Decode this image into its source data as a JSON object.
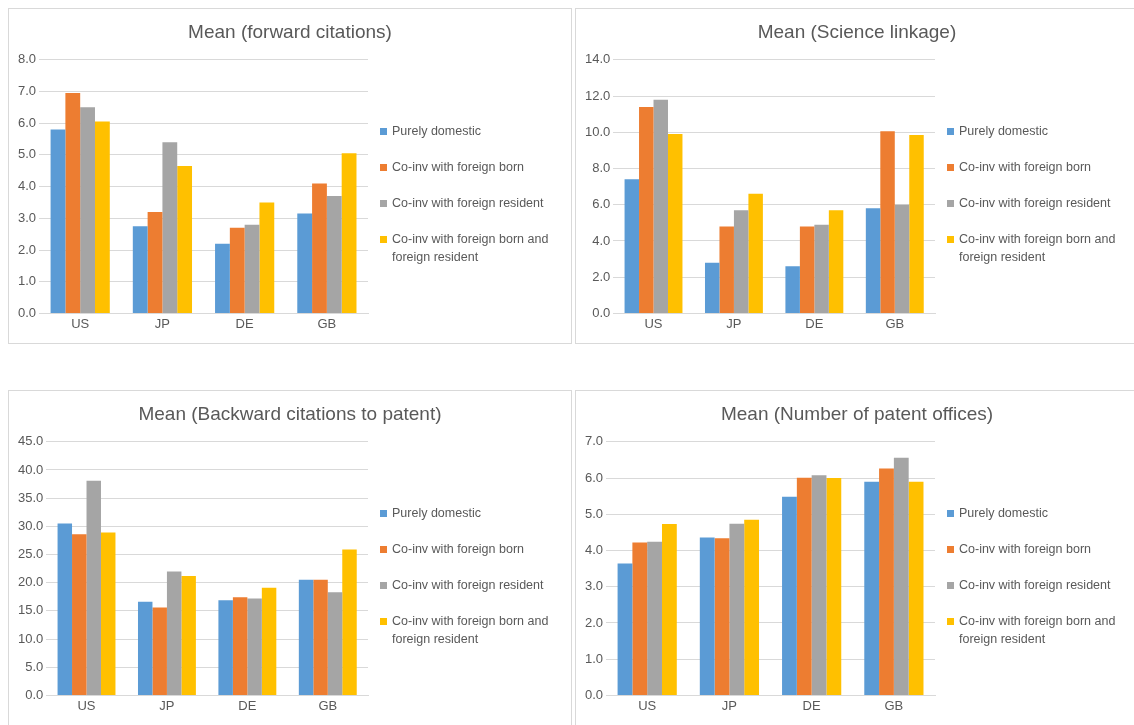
{
  "chart_data": [
    {
      "type": "bar",
      "title": "Mean (forward citations)",
      "categories": [
        "US",
        "JP",
        "DE",
        "GB"
      ],
      "series": [
        {
          "name": "Purely domestic",
          "color": "#5b9bd5",
          "values": [
            5.8,
            2.75,
            2.2,
            3.15
          ]
        },
        {
          "name": "Co-inv with foreign born",
          "color": "#ed7d31",
          "values": [
            6.95,
            3.2,
            2.7,
            4.1
          ]
        },
        {
          "name": "Co-inv with foreign resident",
          "color": "#a5a5a5",
          "values": [
            6.5,
            5.4,
            2.8,
            3.7
          ]
        },
        {
          "name": "Co-inv with foreign born and foreign resident",
          "color": "#ffc000",
          "values": [
            6.05,
            4.65,
            3.5,
            5.05
          ]
        }
      ],
      "ylim": [
        0,
        8
      ],
      "yticks": [
        {
          "value": 0,
          "label": "0.0"
        },
        {
          "value": 1,
          "label": "1.0"
        },
        {
          "value": 2,
          "label": "2.0"
        },
        {
          "value": 3,
          "label": "3.0"
        },
        {
          "value": 4,
          "label": "4.0"
        },
        {
          "value": 5,
          "label": "5.0"
        },
        {
          "value": 6,
          "label": "6.0"
        },
        {
          "value": 7,
          "label": "7.0"
        },
        {
          "value": 8,
          "label": "8.0"
        }
      ],
      "grid": "y",
      "legend": "right"
    },
    {
      "type": "bar",
      "title": "Mean (Science linkage)",
      "categories": [
        "US",
        "JP",
        "DE",
        "GB"
      ],
      "series": [
        {
          "name": "Purely domestic",
          "color": "#5b9bd5",
          "values": [
            7.4,
            2.8,
            2.6,
            5.8
          ]
        },
        {
          "name": "Co-inv with foreign born",
          "color": "#ed7d31",
          "values": [
            11.4,
            4.8,
            4.8,
            10.05
          ]
        },
        {
          "name": "Co-inv with foreign resident",
          "color": "#a5a5a5",
          "values": [
            11.8,
            5.7,
            4.9,
            6.0
          ]
        },
        {
          "name": "Co-inv with foreign born and foreign resident",
          "color": "#ffc000",
          "values": [
            9.9,
            6.6,
            5.7,
            9.85
          ]
        }
      ],
      "ylim": [
        0,
        14
      ],
      "yticks": [
        {
          "value": 0,
          "label": "0.0"
        },
        {
          "value": 2,
          "label": "2.0"
        },
        {
          "value": 4,
          "label": "4.0"
        },
        {
          "value": 6,
          "label": "6.0"
        },
        {
          "value": 8,
          "label": "8.0"
        },
        {
          "value": 10,
          "label": "10.0"
        },
        {
          "value": 12,
          "label": "12.0"
        },
        {
          "value": 14,
          "label": "14.0"
        }
      ],
      "grid": "y",
      "legend": "right"
    },
    {
      "type": "bar",
      "title": "Mean (Backward citations to patent)",
      "categories": [
        "US",
        "JP",
        "DE",
        "GB"
      ],
      "series": [
        {
          "name": "Purely domestic",
          "color": "#5b9bd5",
          "values": [
            30.5,
            16.6,
            16.9,
            20.5
          ]
        },
        {
          "name": "Co-inv with foreign born",
          "color": "#ed7d31",
          "values": [
            28.6,
            15.6,
            17.4,
            20.5
          ]
        },
        {
          "name": "Co-inv with foreign resident",
          "color": "#a5a5a5",
          "values": [
            38.1,
            22.0,
            17.2,
            18.3
          ]
        },
        {
          "name": "Co-inv with foreign born and foreign resident",
          "color": "#ffc000",
          "values": [
            28.9,
            21.2,
            19.1,
            25.9
          ]
        }
      ],
      "ylim": [
        0,
        45
      ],
      "yticks": [
        {
          "value": 0,
          "label": "0.0"
        },
        {
          "value": 5,
          "label": "5.0"
        },
        {
          "value": 10,
          "label": "10.0"
        },
        {
          "value": 15,
          "label": "15.0"
        },
        {
          "value": 20,
          "label": "20.0"
        },
        {
          "value": 25,
          "label": "25.0"
        },
        {
          "value": 30,
          "label": "30.0"
        },
        {
          "value": 35,
          "label": "35.0"
        },
        {
          "value": 40,
          "label": "40.0"
        },
        {
          "value": 45,
          "label": "45.0"
        }
      ],
      "grid": "y",
      "legend": "right"
    },
    {
      "type": "bar",
      "title": "Mean (Number of patent offices)",
      "categories": [
        "US",
        "JP",
        "DE",
        "GB"
      ],
      "series": [
        {
          "name": "Purely domestic",
          "color": "#5b9bd5",
          "values": [
            3.64,
            4.36,
            5.48,
            5.9
          ]
        },
        {
          "name": "Co-inv with foreign born",
          "color": "#ed7d31",
          "values": [
            4.22,
            4.34,
            6.01,
            6.26
          ]
        },
        {
          "name": "Co-inv with foreign resident",
          "color": "#a5a5a5",
          "values": [
            4.24,
            4.74,
            6.08,
            6.56
          ]
        },
        {
          "name": "Co-inv with foreign born and foreign resident",
          "color": "#ffc000",
          "values": [
            4.73,
            4.85,
            6.0,
            5.9
          ]
        }
      ],
      "ylim": [
        0,
        7
      ],
      "yticks": [
        {
          "value": 0,
          "label": "0.0"
        },
        {
          "value": 1,
          "label": "1.0"
        },
        {
          "value": 2,
          "label": "2.0"
        },
        {
          "value": 3,
          "label": "3.0"
        },
        {
          "value": 4,
          "label": "4.0"
        },
        {
          "value": 5,
          "label": "5.0"
        },
        {
          "value": 6,
          "label": "6.0"
        },
        {
          "value": 7,
          "label": "7.0"
        }
      ],
      "grid": "y",
      "legend": "right"
    }
  ]
}
